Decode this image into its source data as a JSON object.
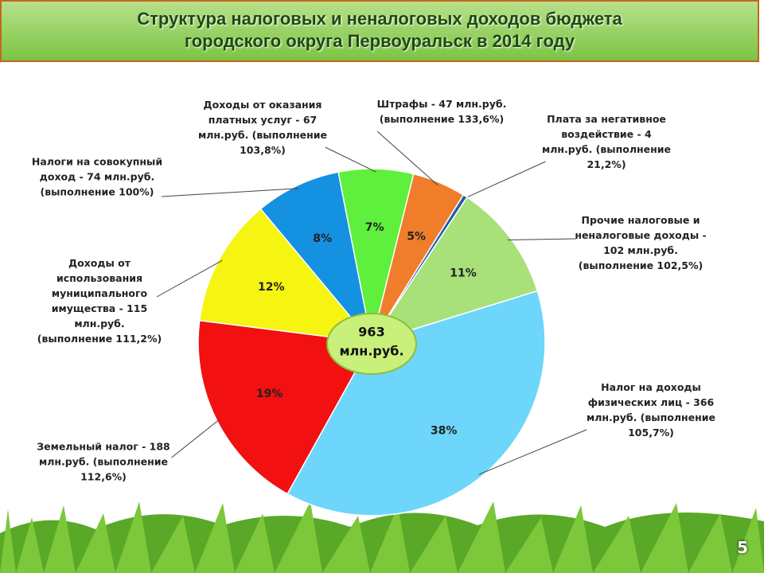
{
  "title_lines": [
    "Структура налоговых и неналоговых доходов  бюджета",
    "городского округа Первоуральск в 2014 году"
  ],
  "page_number": "5",
  "chart_data": {
    "type": "pie",
    "categories": [
      "Штрафы - 47 млн.руб. (выполнение 133,6%)",
      "Плата за негативное воздействие - 4 млн.руб. (выполнение 21,2%)",
      "Прочие налоговые и неналоговые доходы - 102 млн.руб. (выполнение 102,5%)",
      "Налог на доходы физических лиц - 366 млн.руб. (выполнение 105,7%)",
      "Земельный налог - 188 млн.руб. (выполнение 112,6%)",
      "Доходы от использования муниципального имущества - 115 млн.руб. (выполнение 111,2%)",
      "Налоги на совокупный доход - 74 млн.руб. (выполнение 100%)",
      "Доходы от оказания платных услуг - 67 млн.руб. (выполнение 103,8%)"
    ],
    "values": [
      5,
      0.4,
      11,
      38,
      19,
      12,
      8,
      7
    ],
    "value_labels": [
      "5%",
      null,
      "11%",
      "38%",
      "19%",
      "12%",
      "8%",
      "7%"
    ],
    "colors": [
      "#f07d2a",
      "#1f5fa8",
      "#a8e07a",
      "#6dd6fa",
      "#f21010",
      "#f5f511",
      "#1491e0",
      "#5ef03c"
    ],
    "total": 963,
    "total_unit": "млн.руб."
  }
}
